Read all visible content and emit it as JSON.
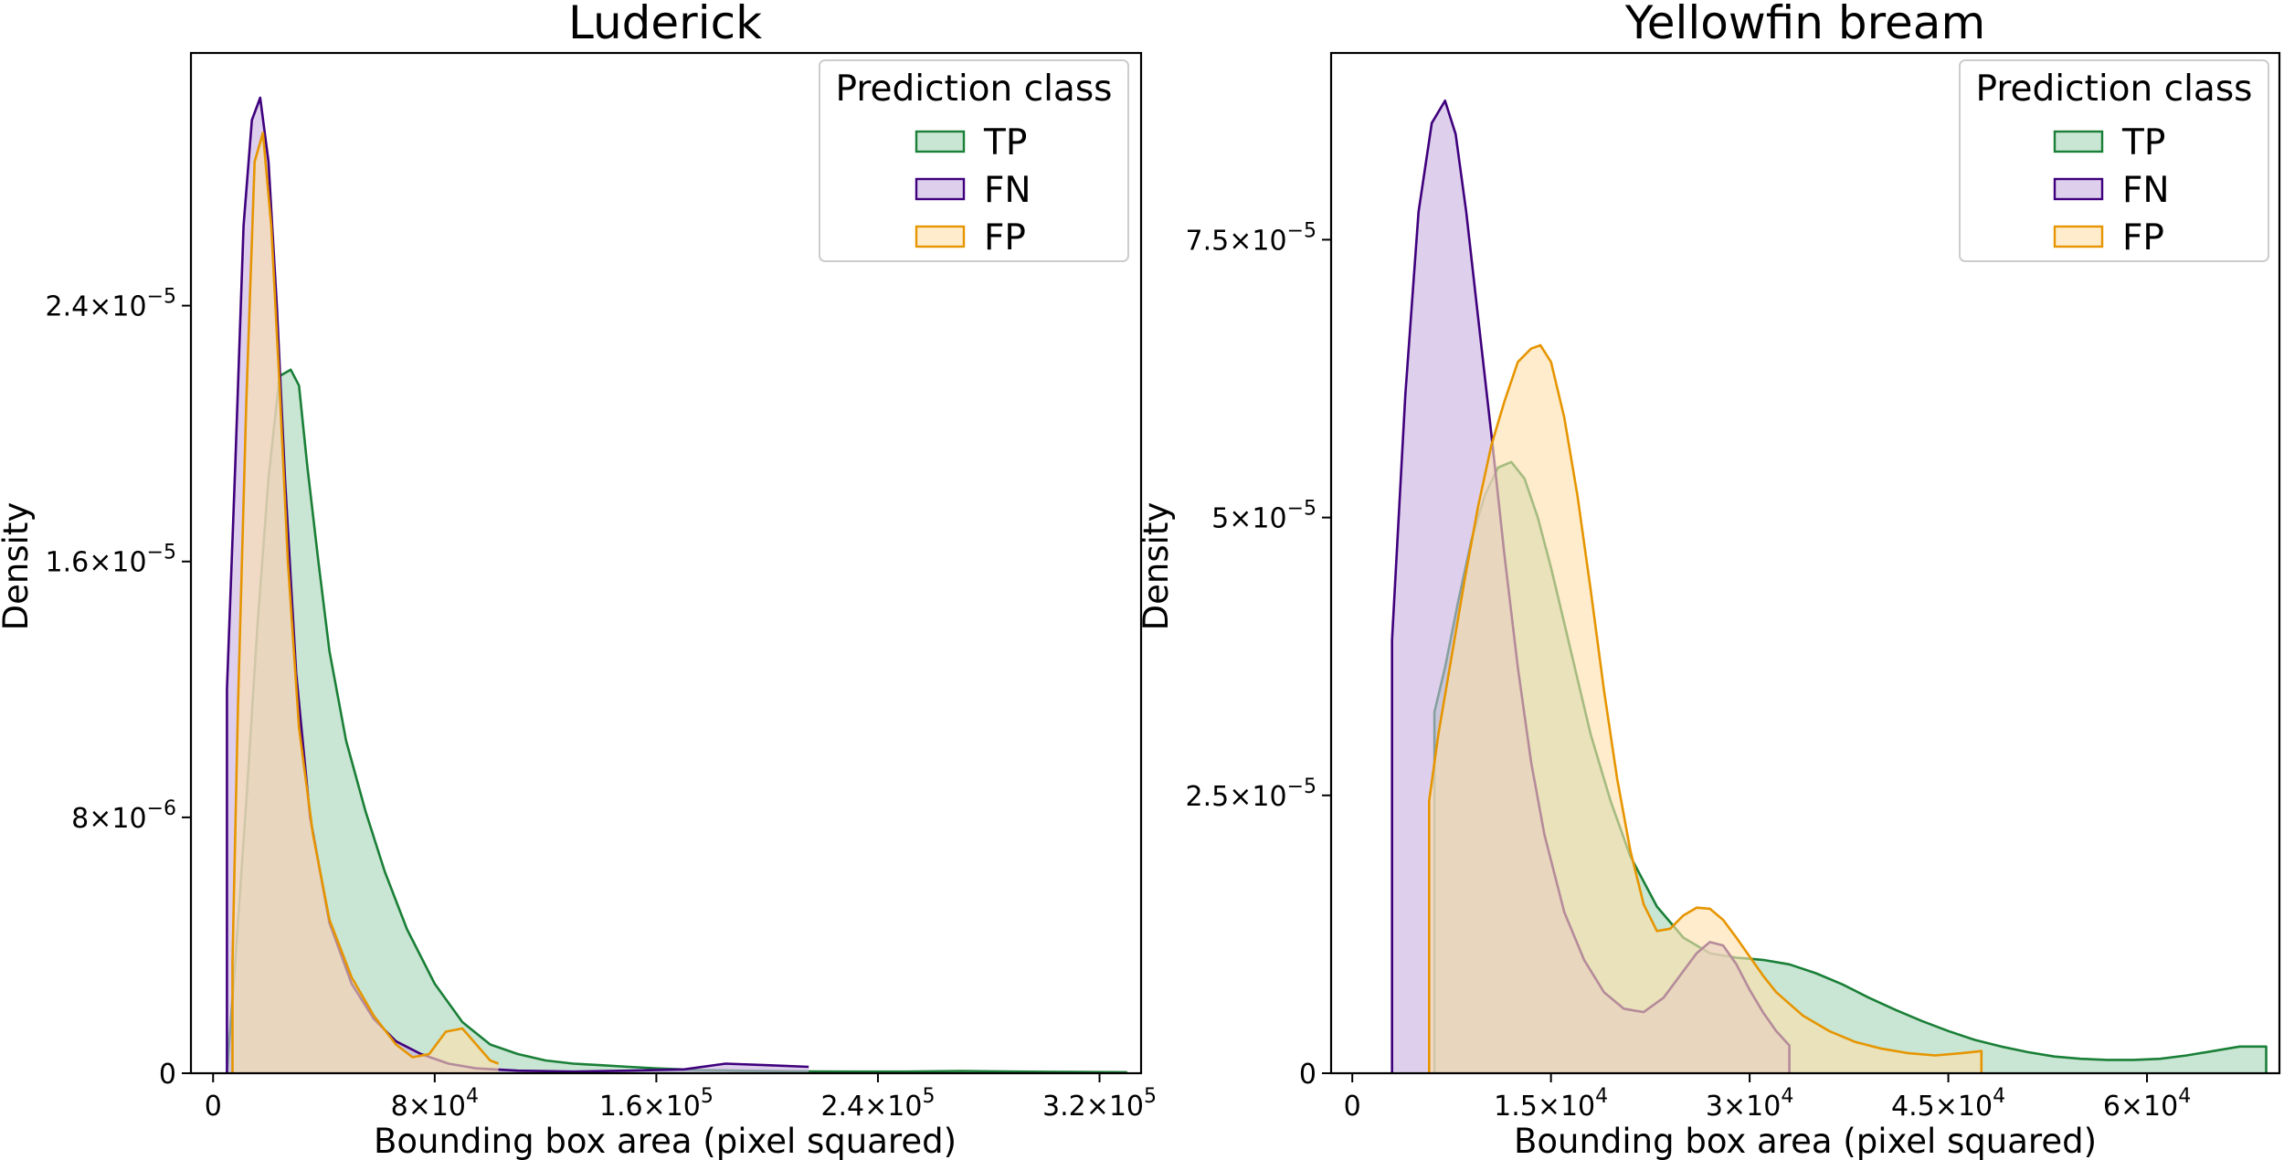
{
  "chart_data": [
    {
      "type": "area",
      "title": "Luderick",
      "xlabel": "Bounding box area (pixel squared)",
      "ylabel": "Density",
      "xlim": [
        -8000,
        335000
      ],
      "ylim": [
        0,
        3.19e-05
      ],
      "xticks": [
        0,
        80000,
        160000,
        240000,
        320000
      ],
      "xtick_labels": [
        {
          "base": "0",
          "exp": ""
        },
        {
          "base": "8×10",
          "exp": "4"
        },
        {
          "base": "1.6×10",
          "exp": "5"
        },
        {
          "base": "2.4×10",
          "exp": "5"
        },
        {
          "base": "3.2×10",
          "exp": "5"
        }
      ],
      "yticks": [
        0,
        8e-06,
        1.6e-05,
        2.4e-05
      ],
      "ytick_labels": [
        {
          "base": "0",
          "exp": ""
        },
        {
          "base": "8×10",
          "exp": "−6"
        },
        {
          "base": "1.6×10",
          "exp": "−5"
        },
        {
          "base": "2.4×10",
          "exp": "−5"
        }
      ],
      "grid": false,
      "legend": {
        "title": "Prediction class",
        "placement": "top-right"
      },
      "series": [
        {
          "name": "TP",
          "color": "#1a7f37",
          "fill": "#a8d5b8",
          "x": [
            5000,
            8000,
            12000,
            16000,
            20000,
            24000,
            28000,
            31000,
            34000,
            38000,
            42000,
            48000,
            55000,
            62000,
            70000,
            80000,
            90000,
            100000,
            110000,
            120000,
            130000,
            140000,
            150000,
            160000,
            175000,
            190000,
            210000,
            230000,
            250000,
            270000,
            290000,
            310000,
            330000
          ],
          "y": [
            0,
            3.5e-06,
            8.5e-06,
            1.4e-05,
            1.86e-05,
            2.18e-05,
            2.2e-05,
            2.15e-05,
            1.9e-05,
            1.6e-05,
            1.32e-05,
            1.04e-05,
            8.2e-06,
            6.3e-06,
            4.5e-06,
            2.8e-06,
            1.6e-06,
            9e-07,
            6e-07,
            4e-07,
            3e-07,
            2.5e-07,
            2e-07,
            1.5e-07,
            1e-07,
            8e-08,
            6e-08,
            5e-08,
            5e-08,
            7e-08,
            5e-08,
            4e-08,
            3e-08
          ]
        },
        {
          "name": "FN",
          "color": "#3f007d",
          "fill": "#c9b3e0",
          "x": [
            5000,
            5000,
            8000,
            11000,
            14000,
            17000,
            20000,
            23000,
            26000,
            30000,
            35000,
            42000,
            50000,
            58000,
            66000,
            75000,
            85000,
            95000,
            110000,
            130000,
            150000,
            170000,
            185000,
            200000,
            215000
          ],
          "y": [
            0,
            1.2e-05,
            1.9e-05,
            2.65e-05,
            2.98e-05,
            3.05e-05,
            2.85e-05,
            2.4e-05,
            1.85e-05,
            1.25e-05,
            8e-06,
            4.7e-06,
            2.8e-06,
            1.7e-06,
            1e-06,
            6e-07,
            3e-07,
            1.5e-07,
            8e-08,
            5e-08,
            8e-08,
            1.2e-07,
            3e-07,
            2.5e-07,
            2e-07
          ]
        },
        {
          "name": "FP",
          "color": "#e69500",
          "fill": "#fde1ad",
          "x": [
            7000,
            7000,
            9000,
            12000,
            15000,
            18000,
            21000,
            24000,
            27000,
            31000,
            36000,
            42000,
            50000,
            58000,
            66000,
            72000,
            78000,
            84000,
            90000,
            95000,
            100000,
            103000
          ],
          "y": [
            0,
            3.5e-06,
            1.15e-05,
            2.1e-05,
            2.85e-05,
            2.94e-05,
            2.65e-05,
            2.15e-05,
            1.6e-05,
            1.08e-05,
            7.5e-06,
            4.8e-06,
            3e-06,
            1.8e-06,
            9e-07,
            5e-07,
            6e-07,
            1.3e-06,
            1.4e-06,
            9e-07,
            4e-07,
            3e-07
          ]
        }
      ]
    },
    {
      "type": "area",
      "title": "Yellowfin bream",
      "xlabel": "Bounding box area (pixel squared)",
      "ylabel": "Density",
      "xlim": [
        -1600,
        70000
      ],
      "ylim": [
        0,
        9.18e-05
      ],
      "xticks": [
        0,
        15000,
        30000,
        45000,
        60000
      ],
      "xtick_labels": [
        {
          "base": "0",
          "exp": ""
        },
        {
          "base": "1.5×10",
          "exp": "4"
        },
        {
          "base": "3×10",
          "exp": "4"
        },
        {
          "base": "4.5×10",
          "exp": "4"
        },
        {
          "base": "6×10",
          "exp": "4"
        }
      ],
      "yticks": [
        0,
        2.5e-05,
        5e-05,
        7.5e-05
      ],
      "ytick_labels": [
        {
          "base": "0",
          "exp": ""
        },
        {
          "base": "2.5×10",
          "exp": "−5"
        },
        {
          "base": "5×10",
          "exp": "−5"
        },
        {
          "base": "7.5×10",
          "exp": "−5"
        }
      ],
      "grid": false,
      "legend": {
        "title": "Prediction class",
        "placement": "top-right"
      },
      "series": [
        {
          "name": "TP",
          "color": "#1a7f37",
          "fill": "#a8d5b8",
          "x": [
            6200,
            6200,
            7000,
            8000,
            9000,
            10000,
            11000,
            12000,
            13000,
            14000,
            15000,
            16000,
            17000,
            18000,
            19500,
            21000,
            23000,
            25000,
            27000,
            29000,
            31000,
            33000,
            35000,
            37000,
            39000,
            41000,
            43000,
            45000,
            47000,
            49000,
            51000,
            53000,
            55000,
            57000,
            59000,
            61000,
            63000,
            65000,
            67000,
            69000,
            69000
          ],
          "y": [
            0,
            3.25e-05,
            3.65e-05,
            4.25e-05,
            4.8e-05,
            5.2e-05,
            5.45e-05,
            5.5e-05,
            5.35e-05,
            5e-05,
            4.55e-05,
            4.05e-05,
            3.55e-05,
            3.05e-05,
            2.45e-05,
            1.95e-05,
            1.5e-05,
            1.22e-05,
            1.08e-05,
            1.04e-05,
            1.02e-05,
            9.8e-06,
            9e-06,
            8e-06,
            6.8e-06,
            5.7e-06,
            4.7e-06,
            3.8e-06,
            3e-06,
            2.4e-06,
            1.9e-06,
            1.5e-06,
            1.3e-06,
            1.2e-06,
            1.2e-06,
            1.3e-06,
            1.6e-06,
            2e-06,
            2.4e-06,
            2.4e-06,
            0
          ]
        },
        {
          "name": "FN",
          "color": "#3f007d",
          "fill": "#c9b3e0",
          "x": [
            3000,
            3000,
            4000,
            5000,
            6000,
            7000,
            7800,
            8600,
            9500,
            10500,
            11500,
            12500,
            13500,
            14500,
            16000,
            17500,
            19000,
            20500,
            22000,
            23500,
            25000,
            26000,
            27000,
            28000,
            29000,
            30000,
            31000,
            32000,
            33000,
            33000
          ],
          "y": [
            0,
            3.9e-05,
            6.1e-05,
            7.75e-05,
            8.55e-05,
            8.75e-05,
            8.45e-05,
            7.75e-05,
            6.8e-05,
            5.75e-05,
            4.65e-05,
            3.65e-05,
            2.8e-05,
            2.15e-05,
            1.45e-05,
            1.02e-05,
            7.3e-06,
            5.8e-06,
            5.5e-06,
            6.8e-06,
            9.2e-06,
            1.08e-05,
            1.18e-05,
            1.15e-05,
            9.8e-06,
            7.5e-06,
            5.5e-06,
            3.8e-06,
            2.5e-06,
            0
          ]
        },
        {
          "name": "FP",
          "color": "#e69500",
          "fill": "#fde1ad",
          "x": [
            5800,
            5800,
            6500,
            7500,
            8500,
            9500,
            10500,
            11500,
            12500,
            13500,
            14200,
            15000,
            16000,
            17000,
            18000,
            19000,
            20000,
            21000,
            22000,
            23000,
            24000,
            25000,
            26000,
            27000,
            28000,
            29000,
            30000,
            31000,
            32000,
            34000,
            36000,
            38000,
            40000,
            42000,
            44000,
            46000,
            47500,
            47500
          ],
          "y": [
            0,
            2.45e-05,
            3.05e-05,
            3.75e-05,
            4.45e-05,
            5.1e-05,
            5.65e-05,
            6.05e-05,
            6.4e-05,
            6.52e-05,
            6.55e-05,
            6.4e-05,
            5.9e-05,
            5.2e-05,
            4.35e-05,
            3.45e-05,
            2.65e-05,
            2e-05,
            1.52e-05,
            1.28e-05,
            1.3e-05,
            1.42e-05,
            1.49e-05,
            1.48e-05,
            1.38e-05,
            1.22e-05,
            1.05e-05,
            8.8e-06,
            7.3e-06,
            5.2e-06,
            3.8e-06,
            2.8e-06,
            2.2e-06,
            1.8e-06,
            1.6e-06,
            1.8e-06,
            2e-06,
            0
          ]
        }
      ]
    }
  ]
}
